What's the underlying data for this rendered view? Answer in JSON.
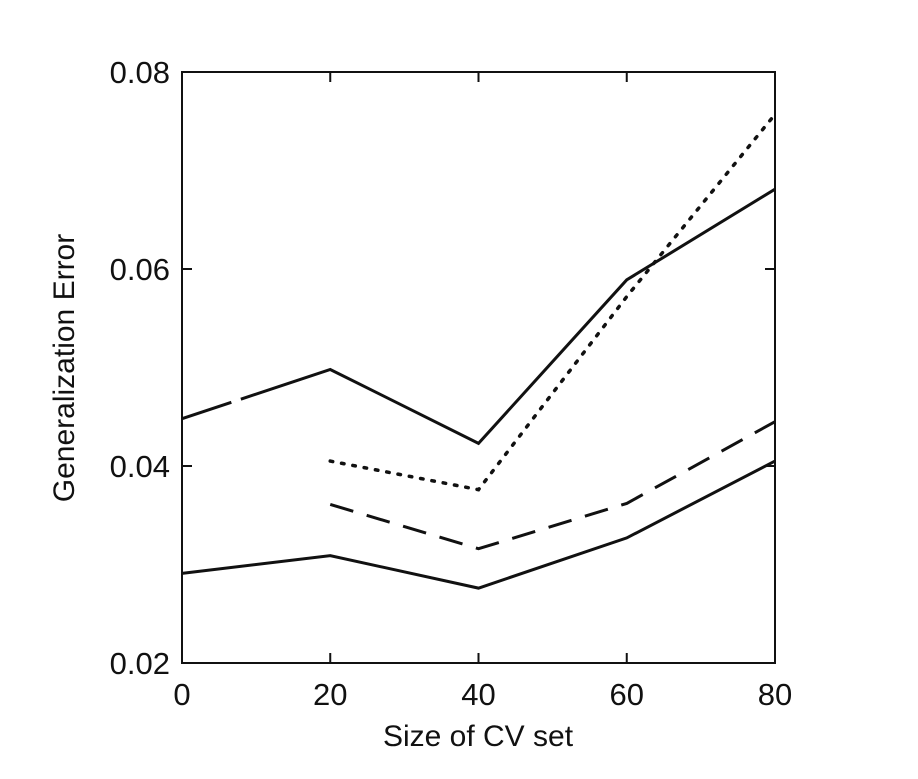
{
  "chart_data": {
    "type": "line",
    "xlabel": "Size of CV set",
    "ylabel": "Generalization Error",
    "xlim": [
      0,
      80
    ],
    "ylim": [
      0.02,
      0.08
    ],
    "xticks": [
      0,
      20,
      40,
      60,
      80
    ],
    "yticks": [
      0.02,
      0.04,
      0.06,
      0.08
    ],
    "xtick_labels": [
      "0",
      "20",
      "40",
      "60",
      "80"
    ],
    "ytick_labels": [
      "0.02",
      "0.04",
      "0.06",
      "0.08"
    ],
    "grid": false,
    "legend": "none",
    "series": [
      {
        "style": "solid",
        "color": "#111111",
        "x": [
          0,
          20,
          40,
          60,
          80
        ],
        "y": [
          0.0448,
          0.0498,
          0.0423,
          0.0589,
          0.0681
        ],
        "note_gap": "short gap near x=9"
      },
      {
        "style": "dotted",
        "color": "#111111",
        "x": [
          20,
          40,
          60,
          80
        ],
        "y": [
          0.0405,
          0.0376,
          0.0572,
          0.0757
        ]
      },
      {
        "style": "dashed",
        "color": "#111111",
        "x": [
          20,
          40,
          60,
          80
        ],
        "y": [
          0.0361,
          0.0316,
          0.0362,
          0.0445
        ]
      },
      {
        "style": "solid",
        "color": "#111111",
        "x": [
          0,
          20,
          40,
          60,
          80
        ],
        "y": [
          0.0291,
          0.0309,
          0.0276,
          0.0327,
          0.0405
        ]
      }
    ]
  }
}
